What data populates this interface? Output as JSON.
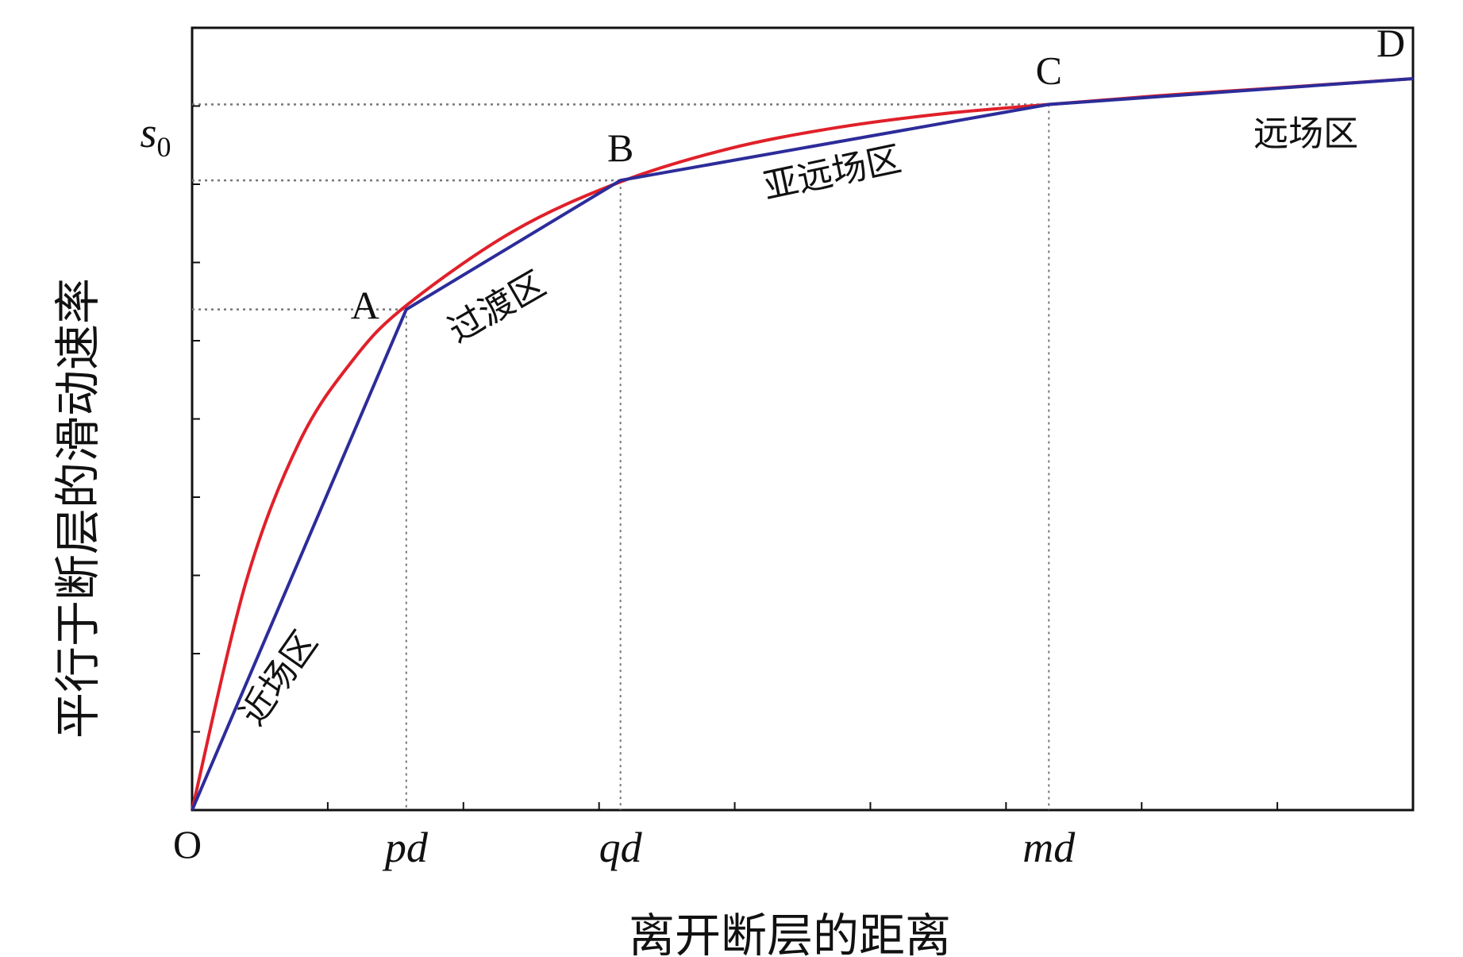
{
  "chart_data": {
    "type": "line",
    "ylabel": "平行于断层的滑动速率",
    "xlabel": "离开断层的距离",
    "origin_label": "O",
    "x_tick_labels": [
      "pd",
      "qd",
      "md"
    ],
    "x_ticks": [
      1,
      2,
      4
    ],
    "y_marker_label": "s0",
    "y_marker_label_base": "s",
    "y_marker_label_sub": "0",
    "xlim": [
      0,
      5.7
    ],
    "ylim": [
      0,
      1.0
    ],
    "grid": false,
    "points": [
      {
        "label": "A",
        "x": 1,
        "y": 0.64
      },
      {
        "label": "B",
        "x": 2,
        "y": 0.805
      },
      {
        "label": "C",
        "x": 4,
        "y": 0.902
      },
      {
        "label": "D",
        "x": 5.7,
        "y": 0.935
      }
    ],
    "series": [
      {
        "color": "#e0202a",
        "kind": "smooth-curve",
        "x": [
          0,
          0.25,
          0.5,
          0.75,
          1,
          1.5,
          2,
          2.5,
          3,
          3.5,
          4,
          4.5,
          5,
          5.7
        ],
        "y": [
          0,
          0.29,
          0.47,
          0.575,
          0.645,
          0.74,
          0.803,
          0.845,
          0.872,
          0.89,
          0.902,
          0.913,
          0.922,
          0.935
        ]
      },
      {
        "color": "#2c2c9a",
        "kind": "piecewise-linear",
        "x": [
          0,
          1,
          2,
          4,
          5.7
        ],
        "y": [
          0,
          0.64,
          0.805,
          0.902,
          0.935
        ]
      }
    ],
    "zones": [
      {
        "label": "近场区",
        "x": 0.45,
        "y": 0.16,
        "rotate": -55
      },
      {
        "label": "过渡区",
        "x": 1.45,
        "y": 0.63,
        "rotate": -30
      },
      {
        "label": "亚远场区",
        "x": 3.0,
        "y": 0.8,
        "rotate": -12
      },
      {
        "label": "远场区",
        "x": 5.2,
        "y": 0.85,
        "rotate": 0
      }
    ]
  }
}
